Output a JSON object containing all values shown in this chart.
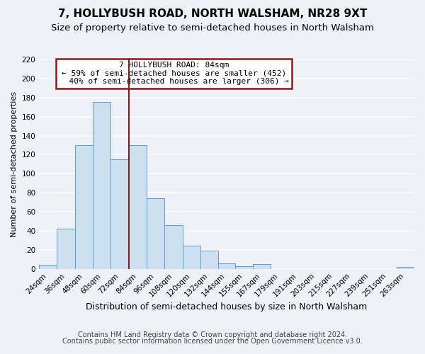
{
  "title": "7, HOLLYBUSH ROAD, NORTH WALSHAM, NR28 9XT",
  "subtitle": "Size of property relative to semi-detached houses in North Walsham",
  "xlabel": "Distribution of semi-detached houses by size in North Walsham",
  "ylabel": "Number of semi-detached properties",
  "bin_labels": [
    "24sqm",
    "36sqm",
    "48sqm",
    "60sqm",
    "72sqm",
    "84sqm",
    "96sqm",
    "108sqm",
    "120sqm",
    "132sqm",
    "144sqm",
    "155sqm",
    "167sqm",
    "179sqm",
    "191sqm",
    "203sqm",
    "215sqm",
    "227sqm",
    "239sqm",
    "251sqm",
    "263sqm"
  ],
  "bin_edges": [
    24,
    36,
    48,
    60,
    72,
    84,
    96,
    108,
    120,
    132,
    144,
    155,
    167,
    179,
    191,
    203,
    215,
    227,
    239,
    251,
    263,
    275
  ],
  "counts": [
    4,
    42,
    130,
    175,
    115,
    130,
    74,
    46,
    24,
    19,
    6,
    3,
    5,
    0,
    0,
    0,
    0,
    0,
    0,
    0,
    2
  ],
  "property_size": 84,
  "smaller_pct": 59,
  "smaller_count": 452,
  "larger_pct": 40,
  "larger_count": 306,
  "bar_facecolor": "#cce0f0",
  "bar_edgecolor": "#5b9bd5",
  "vline_color": "#8b1a1a",
  "box_edgecolor": "#8b1a1a",
  "ylim": [
    0,
    220
  ],
  "yticks": [
    0,
    20,
    40,
    60,
    80,
    100,
    120,
    140,
    160,
    180,
    200,
    220
  ],
  "footer1": "Contains HM Land Registry data © Crown copyright and database right 2024.",
  "footer2": "Contains public sector information licensed under the Open Government Licence v3.0.",
  "background_color": "#eef2f8",
  "grid_color": "#ffffff",
  "title_fontsize": 11,
  "subtitle_fontsize": 9.5,
  "xlabel_fontsize": 9,
  "ylabel_fontsize": 8,
  "tick_fontsize": 7.5,
  "annotation_fontsize": 8,
  "footer_fontsize": 7
}
